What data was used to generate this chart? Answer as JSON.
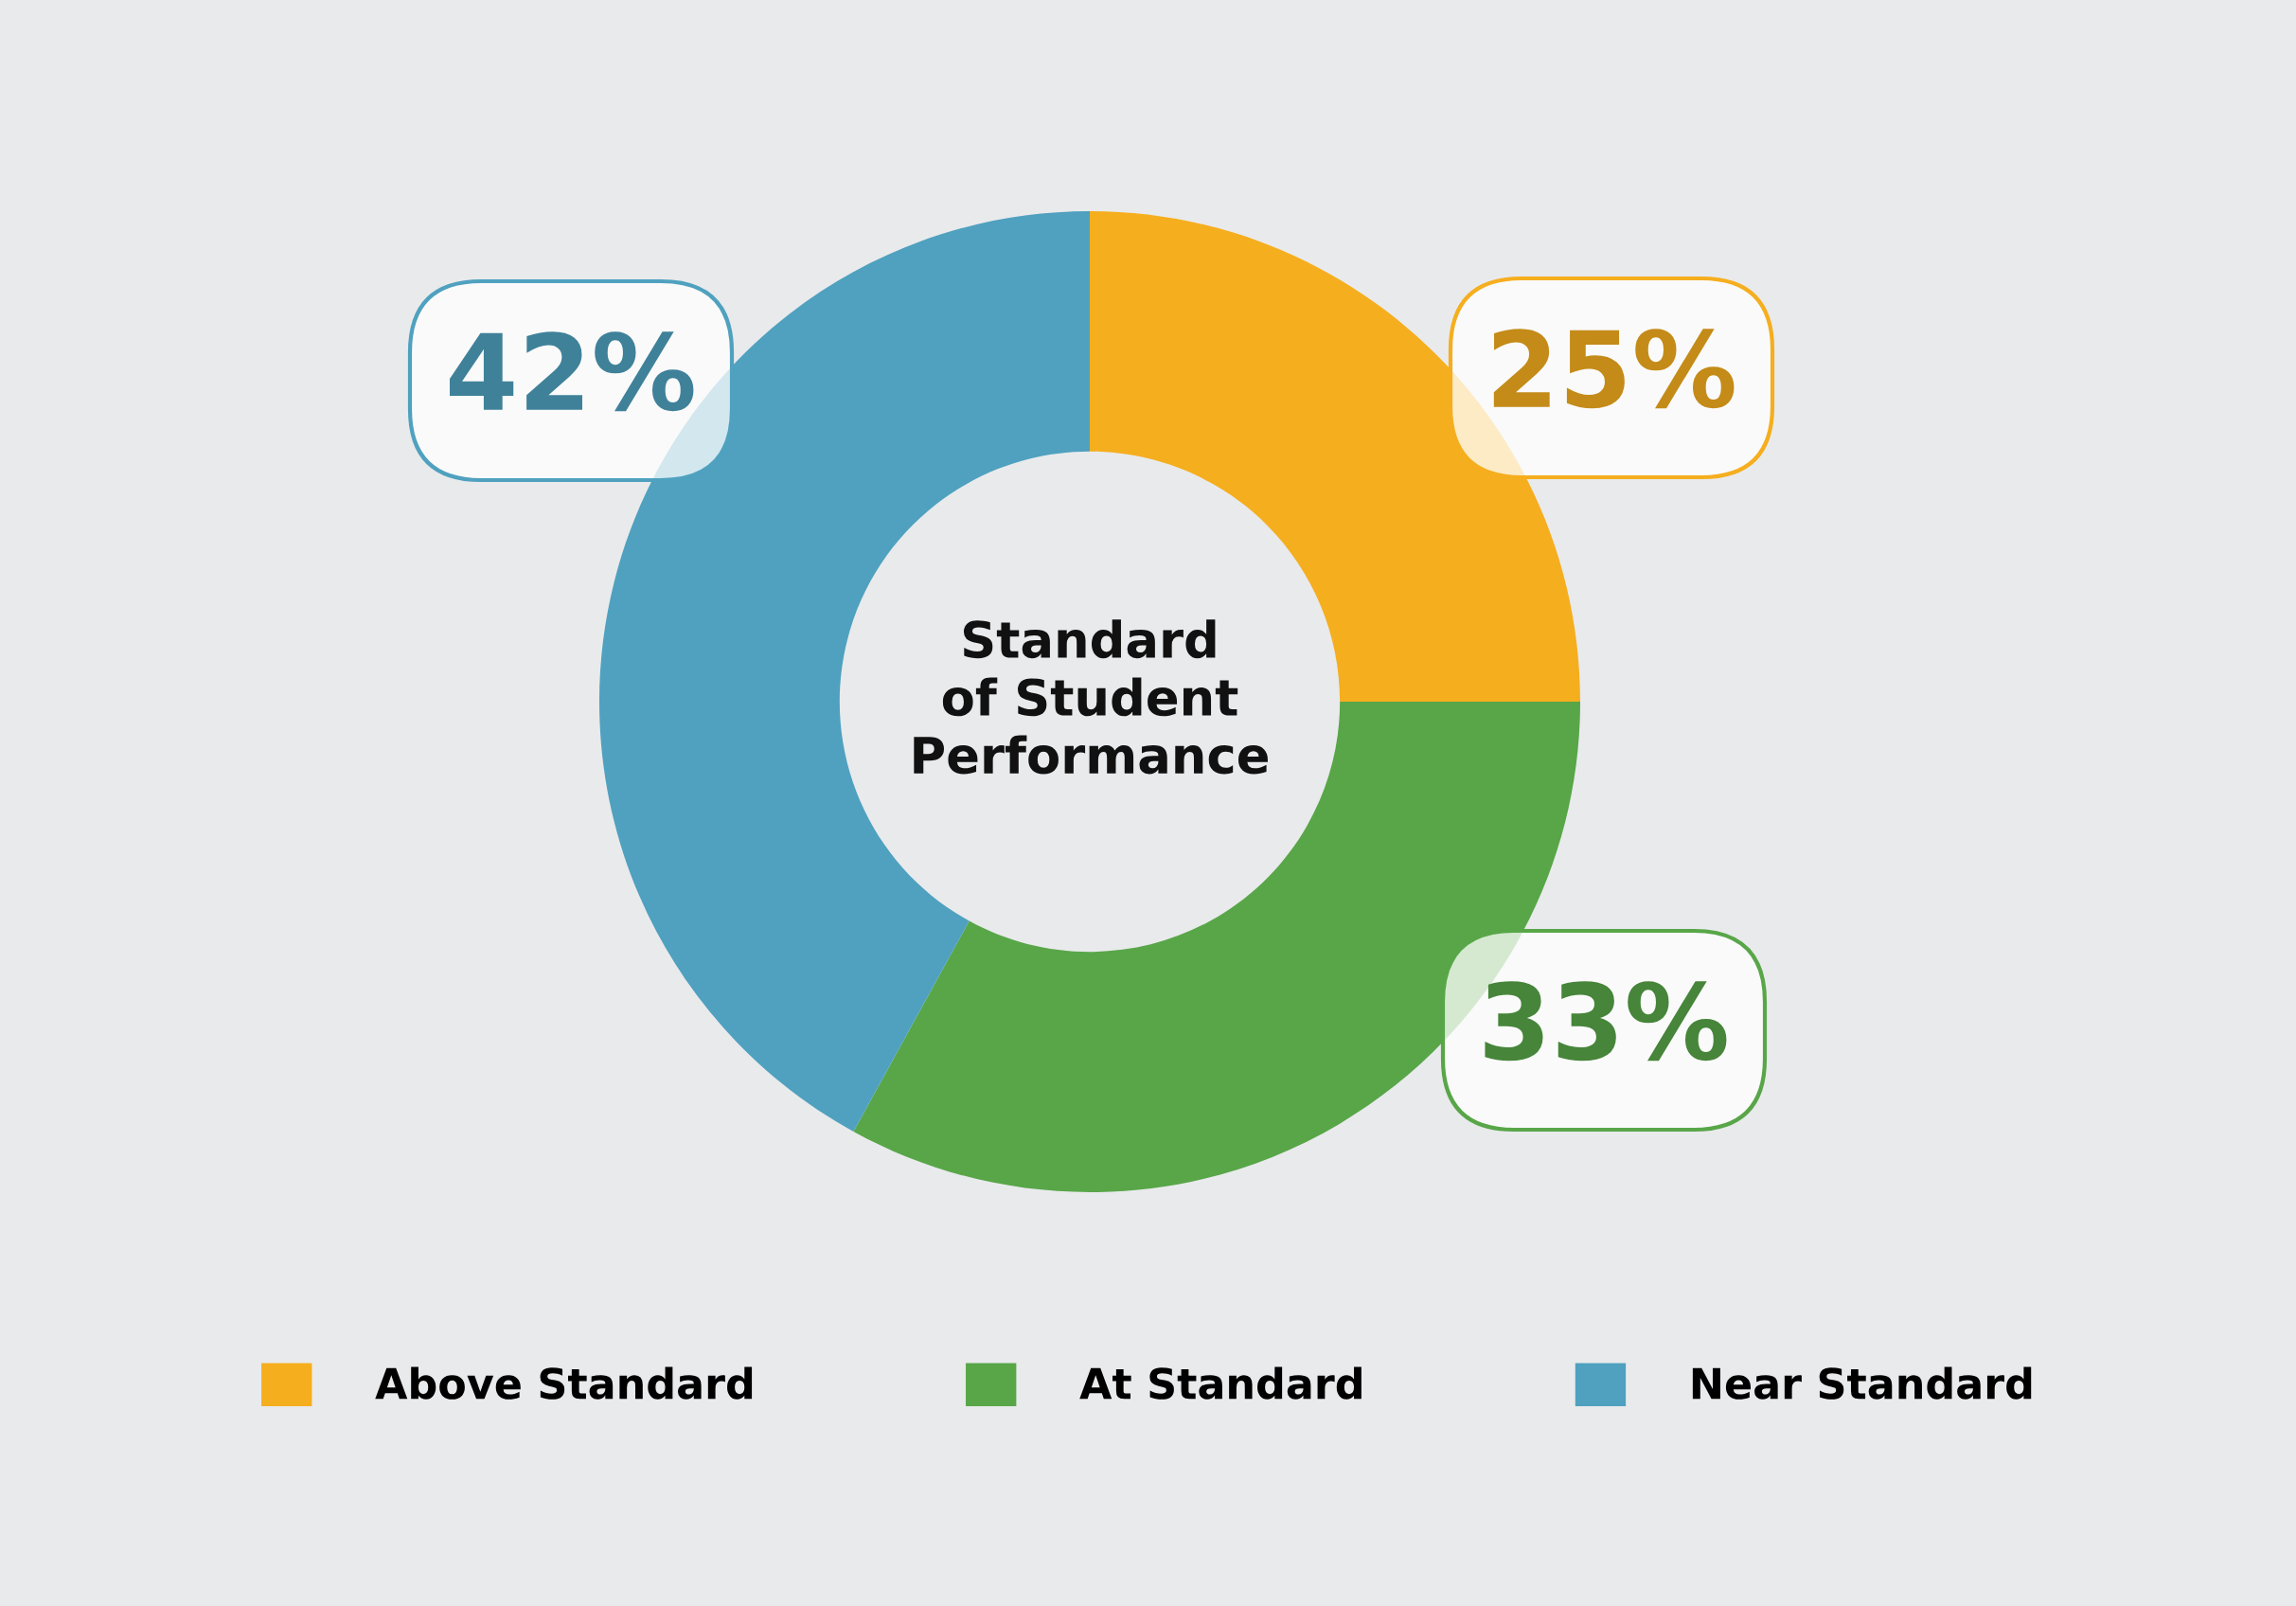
{
  "chart_data": {
    "type": "donut",
    "title": "Standard\nof Student\nPerformance",
    "categories": [
      "Above Standard",
      "At Standard",
      "Near Standard"
    ],
    "values": [
      25,
      33,
      42
    ],
    "colors": [
      "#f5ae1e",
      "#58a648",
      "#4fa1bf"
    ],
    "value_labels": [
      "25%",
      "33%",
      "42%"
    ],
    "legend": "bottom"
  }
}
